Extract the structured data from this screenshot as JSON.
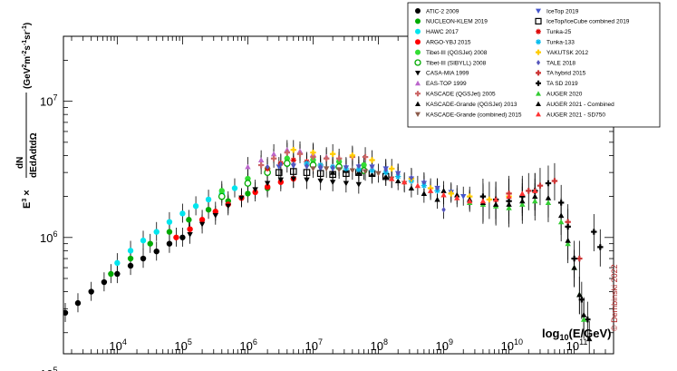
{
  "chart_data": {
    "type": "scatter",
    "x_scale": "log",
    "y_scale": "log",
    "xlim": [
      1500,
      400000000000
    ],
    "ylim": [
      140000,
      30000000
    ],
    "xlabel": "log10(E/GeV)",
    "ylabel": "E3 × dN/dEdAdtdΩ (GeV2m-2s-1sr-1)",
    "x_tick_labels": [
      {
        "value": 10000,
        "base": "10",
        "exp": "4"
      },
      {
        "value": 100000,
        "base": "10",
        "exp": "5"
      },
      {
        "value": 1000000,
        "base": "10",
        "exp": "6"
      },
      {
        "value": 10000000,
        "base": "10",
        "exp": "7"
      },
      {
        "value": 100000000,
        "base": "10",
        "exp": "8"
      },
      {
        "value": 1000000000,
        "base": "10",
        "exp": "9"
      },
      {
        "value": 10000000000,
        "base": "10",
        "exp": "10"
      },
      {
        "value": 100000000000,
        "base": "10",
        "exp": "11"
      }
    ],
    "y_tick_labels": [
      {
        "value": 100000,
        "base": "10",
        "exp": "5"
      },
      {
        "value": 1000000,
        "base": "10",
        "exp": "6"
      },
      {
        "value": 10000000,
        "base": "10",
        "exp": "7"
      }
    ],
    "grid": false,
    "legend_position": "top-right",
    "credit": "© Dembinski 2022",
    "series": [
      {
        "name": "ATIC-2 2009",
        "marker": "circle",
        "color": "#000000",
        "points": [
          [
            1600,
            280000
          ],
          [
            2500,
            330000
          ],
          [
            4000,
            400000
          ],
          [
            6300,
            470000
          ],
          [
            10000,
            540000
          ],
          [
            16000,
            620000
          ],
          [
            25000,
            700000
          ],
          [
            40000,
            790000
          ],
          [
            63000,
            900000
          ],
          [
            100000,
            1000000
          ]
        ]
      },
      {
        "name": "NUCLEON-KLEM 2019",
        "marker": "circle",
        "color": "#00aa00",
        "points": [
          [
            8000,
            540000
          ],
          [
            16000,
            700000
          ],
          [
            32000,
            900000
          ],
          [
            63000,
            1100000
          ],
          [
            125000,
            1350000
          ],
          [
            250000,
            1600000
          ],
          [
            500000,
            1850000
          ],
          [
            1000000,
            2100000
          ],
          [
            2000000,
            2300000
          ]
        ]
      },
      {
        "name": "HAWC 2017",
        "marker": "circle",
        "color": "#00e5ee",
        "points": [
          [
            10000,
            650000
          ],
          [
            16000,
            800000
          ],
          [
            25000,
            950000
          ],
          [
            40000,
            1100000
          ],
          [
            63000,
            1300000
          ],
          [
            100000,
            1500000
          ],
          [
            160000,
            1700000
          ],
          [
            250000,
            1900000
          ],
          [
            400000,
            2100000
          ],
          [
            630000,
            2300000
          ],
          [
            1000000,
            2500000
          ]
        ]
      },
      {
        "name": "ARGO-YBJ 2015",
        "marker": "circle",
        "color": "#ff0000",
        "points": [
          [
            80000,
            1000000
          ],
          [
            130000,
            1150000
          ],
          [
            200000,
            1350000
          ],
          [
            320000,
            1550000
          ],
          [
            500000,
            1750000
          ],
          [
            800000,
            1950000
          ],
          [
            1300000,
            2150000
          ],
          [
            2000000,
            2350000
          ],
          [
            3200000,
            2550000
          ],
          [
            5000000,
            2700000
          ]
        ]
      },
      {
        "name": "Tibet-III (QGSJet) 2008",
        "marker": "circle",
        "color": "#33dd33",
        "points": [
          [
            400000,
            2200000
          ],
          [
            1000000,
            2700000
          ],
          [
            2000000,
            3200000
          ],
          [
            4000000,
            3800000
          ],
          [
            10000000,
            3700000
          ],
          [
            25000000,
            3600000
          ],
          [
            60000000,
            3400000
          ]
        ]
      },
      {
        "name": "Tibet-III (SIBYLL) 2008",
        "marker": "open-circle",
        "color": "#00aa00",
        "points": [
          [
            400000,
            2000000
          ],
          [
            1000000,
            2500000
          ],
          [
            2000000,
            3000000
          ],
          [
            4000000,
            3500000
          ],
          [
            10000000,
            3400000
          ],
          [
            25000000,
            3300000
          ],
          [
            60000000,
            3100000
          ]
        ]
      },
      {
        "name": "CASA-MIA 1999",
        "marker": "triangle-down",
        "color": "#000000",
        "points": [
          [
            130000,
            1050000
          ],
          [
            200000,
            1250000
          ],
          [
            320000,
            1450000
          ],
          [
            500000,
            1700000
          ],
          [
            800000,
            1950000
          ],
          [
            1300000,
            2250000
          ],
          [
            2000000,
            2500000
          ],
          [
            3200000,
            2650000
          ],
          [
            5000000,
            2700000
          ],
          [
            8000000,
            2650000
          ],
          [
            13000000,
            2600000
          ],
          [
            20000000,
            2550000
          ],
          [
            32000000,
            2500000
          ],
          [
            50000000,
            2450000
          ]
        ]
      },
      {
        "name": "EAS-TOP 1999",
        "marker": "triangle",
        "color": "#bb66cc",
        "points": [
          [
            1000000,
            3300000
          ],
          [
            1600000,
            3700000
          ],
          [
            2500000,
            4100000
          ],
          [
            4000000,
            4400000
          ],
          [
            6300000,
            4300000
          ],
          [
            10000000,
            4100000
          ],
          [
            16000000,
            3900000
          ]
        ]
      },
      {
        "name": "KASCADE (QGSJet) 2005",
        "marker": "cross",
        "color": "#cc6666",
        "points": [
          [
            1600000,
            3400000
          ],
          [
            2500000,
            3800000
          ],
          [
            4000000,
            4200000
          ],
          [
            6300000,
            4100000
          ],
          [
            10000000,
            3900000
          ],
          [
            16000000,
            3800000
          ],
          [
            25000000,
            3800000
          ],
          [
            40000000,
            3900000
          ],
          [
            63000000,
            3900000
          ]
        ]
      },
      {
        "name": "KASCADE-Grande (QGSJet) 2013",
        "marker": "triangle",
        "color": "#000000",
        "points": [
          [
            20000000,
            3000000
          ],
          [
            32000000,
            3100000
          ],
          [
            50000000,
            3000000
          ],
          [
            80000000,
            2900000
          ],
          [
            130000000,
            2800000
          ],
          [
            200000000,
            2600000
          ],
          [
            320000000,
            2300000
          ],
          [
            500000000,
            2100000
          ],
          [
            800000000,
            1900000
          ]
        ]
      },
      {
        "name": "KASCADE-Grande (combined) 2015",
        "marker": "triangle-down",
        "color": "#8b5a4a",
        "points": [
          [
            10000000,
            3200000
          ],
          [
            16000000,
            3200000
          ],
          [
            25000000,
            3150000
          ],
          [
            40000000,
            3100000
          ],
          [
            63000000,
            3050000
          ],
          [
            100000000,
            2950000
          ],
          [
            160000000,
            2700000
          ],
          [
            250000000,
            2500000
          ]
        ]
      },
      {
        "name": "IceTop 2019",
        "marker": "triangle-down",
        "color": "#4455cc",
        "points": [
          [
            3000000,
            3300000
          ],
          [
            5000000,
            3350000
          ],
          [
            8000000,
            3300000
          ],
          [
            13000000,
            3200000
          ],
          [
            20000000,
            3200000
          ],
          [
            32000000,
            3250000
          ],
          [
            50000000,
            3300000
          ],
          [
            80000000,
            3300000
          ],
          [
            130000000,
            3200000
          ],
          [
            200000000,
            2950000
          ],
          [
            320000000,
            2700000
          ],
          [
            500000000,
            2500000
          ],
          [
            800000000,
            2300000
          ],
          [
            1300000000,
            2150000
          ],
          [
            2000000000,
            2000000
          ]
        ]
      },
      {
        "name": "IceTop/IceCube combined 2019",
        "marker": "open-square",
        "color": "#000000",
        "points": [
          [
            3000000,
            3000000
          ],
          [
            5000000,
            3050000
          ],
          [
            8000000,
            3000000
          ],
          [
            13000000,
            2950000
          ],
          [
            20000000,
            2900000
          ],
          [
            32000000,
            2950000
          ],
          [
            50000000,
            3000000
          ],
          [
            80000000,
            2950000
          ],
          [
            130000000,
            2800000
          ]
        ]
      },
      {
        "name": "Tunka-25",
        "marker": "star",
        "color": "#dd0000",
        "points": [
          [
            2000000,
            3200000
          ],
          [
            3200000,
            3500000
          ],
          [
            5000000,
            3700000
          ],
          [
            8000000,
            3600000
          ],
          [
            13000000,
            3400000
          ]
        ]
      },
      {
        "name": "Tunka-133",
        "marker": "star",
        "color": "#00bbee",
        "points": [
          [
            8000000,
            3500000
          ],
          [
            13000000,
            3400000
          ],
          [
            20000000,
            3300000
          ],
          [
            32000000,
            3200000
          ],
          [
            50000000,
            3150000
          ],
          [
            80000000,
            3100000
          ],
          [
            130000000,
            3000000
          ],
          [
            200000000,
            2800000
          ],
          [
            320000000,
            2600000
          ],
          [
            500000000,
            2400000
          ],
          [
            800000000,
            2200000
          ]
        ]
      },
      {
        "name": "YAKUTSK 2012",
        "marker": "cross",
        "color": "#ffcc00",
        "points": [
          [
            5000000,
            4400000
          ],
          [
            10000000,
            4200000
          ],
          [
            20000000,
            4100000
          ],
          [
            40000000,
            4000000
          ],
          [
            80000000,
            3700000
          ],
          [
            160000000,
            3200000
          ],
          [
            320000000,
            2700000
          ],
          [
            630000000,
            2300000
          ],
          [
            1300000000,
            2100000
          ],
          [
            2500000000,
            2000000
          ],
          [
            5000000000,
            1900000
          ],
          [
            10000000000,
            2000000
          ]
        ]
      },
      {
        "name": "TALE 2018",
        "marker": "diamond",
        "color": "#5555bb",
        "points": [
          [
            2000000,
            3300000
          ],
          [
            3200000,
            3450000
          ],
          [
            5000000,
            3450000
          ],
          [
            8000000,
            3350000
          ],
          [
            13000000,
            3300000
          ],
          [
            20000000,
            3250000
          ],
          [
            32000000,
            3300000
          ],
          [
            50000000,
            3350000
          ],
          [
            80000000,
            3300000
          ],
          [
            130000000,
            3150000
          ],
          [
            200000000,
            2950000
          ],
          [
            320000000,
            2750000
          ],
          [
            500000000,
            2550000
          ],
          [
            800000000,
            2300000
          ],
          [
            1000000000,
            1600000
          ]
        ]
      },
      {
        "name": "TA hybrid 2015",
        "marker": "cross",
        "color": "#cc3333",
        "points": [
          [
            10000000000,
            2100000
          ],
          [
            20000000000,
            2200000
          ],
          [
            30000000000,
            2400000
          ],
          [
            50000000000,
            2600000
          ],
          [
            80000000000,
            1300000
          ],
          [
            120000000000,
            700000
          ]
        ]
      },
      {
        "name": "TA SD 2019",
        "marker": "cross",
        "color": "#000000",
        "points": [
          [
            4000000000,
            2000000
          ],
          [
            6300000000,
            1900000
          ],
          [
            10000000000,
            1850000
          ],
          [
            16000000000,
            2000000
          ],
          [
            25000000000,
            2200000
          ],
          [
            40000000000,
            2500000
          ],
          [
            63000000000,
            1800000
          ],
          [
            80000000000,
            1200000
          ],
          [
            100000000000,
            700000
          ],
          [
            130000000000,
            350000
          ],
          [
            160000000000,
            250000
          ],
          [
            200000000000,
            1100000
          ],
          [
            250000000000,
            850000
          ]
        ]
      },
      {
        "name": "AUGER 2020",
        "marker": "triangle",
        "color": "#33cc33",
        "points": [
          [
            2500000000,
            1800000
          ],
          [
            4000000000,
            1750000
          ],
          [
            6300000000,
            1700000
          ],
          [
            10000000000,
            1650000
          ],
          [
            16000000000,
            1750000
          ],
          [
            25000000000,
            1850000
          ],
          [
            40000000000,
            1800000
          ],
          [
            63000000000,
            1300000
          ],
          [
            80000000000,
            900000
          ],
          [
            100000000000,
            600000
          ],
          [
            120000000000,
            380000
          ],
          [
            140000000000,
            250000
          ]
        ]
      },
      {
        "name": "AUGER 2021 - Combined",
        "marker": "triangle",
        "color": "#000000",
        "points": [
          [
            1000000000,
            2200000
          ],
          [
            1600000000,
            2050000
          ],
          [
            2500000000,
            1900000
          ],
          [
            4000000000,
            1800000
          ],
          [
            6300000000,
            1750000
          ],
          [
            10000000000,
            1750000
          ],
          [
            16000000000,
            1850000
          ],
          [
            25000000000,
            2000000
          ],
          [
            40000000000,
            1950000
          ],
          [
            63000000000,
            1450000
          ],
          [
            80000000000,
            950000
          ],
          [
            100000000000,
            600000
          ],
          [
            120000000000,
            380000
          ],
          [
            140000000000,
            270000
          ],
          [
            170000000000,
            180000
          ]
        ]
      },
      {
        "name": "AUGER 2021 - SD750",
        "marker": "triangle",
        "color": "#ff3333",
        "points": [
          [
            160000000,
            2700000
          ],
          [
            250000000,
            2550000
          ],
          [
            400000000,
            2400000
          ],
          [
            630000000,
            2200000
          ],
          [
            1000000000,
            2050000
          ],
          [
            1600000000,
            1950000
          ],
          [
            2500000000,
            1850000
          ],
          [
            4000000000,
            1850000
          ],
          [
            6300000000,
            1900000
          ],
          [
            10000000000,
            2000000
          ],
          [
            16000000000,
            2100000
          ],
          [
            25000000000,
            2200000
          ]
        ]
      }
    ]
  }
}
